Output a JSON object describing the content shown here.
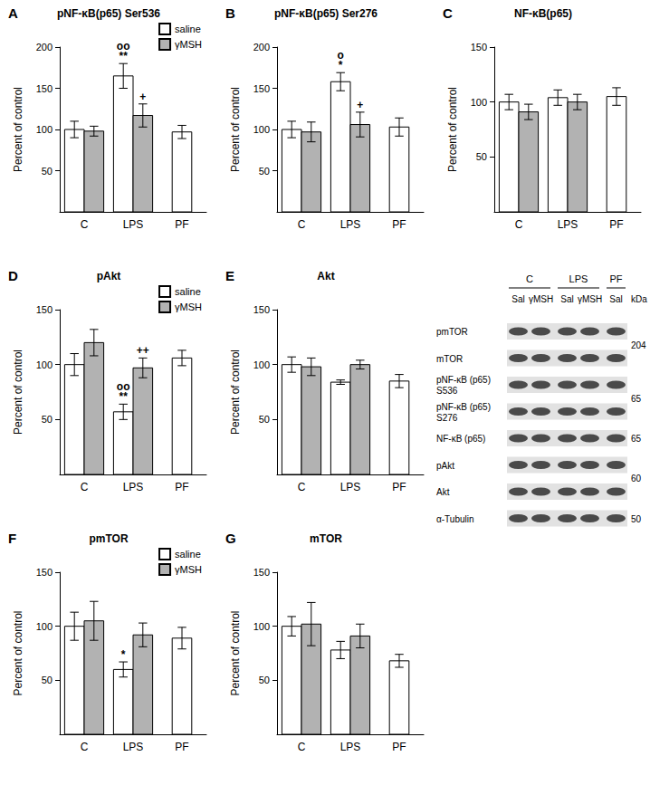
{
  "chart_data": [
    {
      "type": "bar",
      "panel": "A",
      "title": "pNF-κB(p65) Ser536",
      "y_label": "Percent of control",
      "categories": [
        "C",
        "LPS",
        "PF"
      ],
      "ylim": [
        0,
        200
      ],
      "yticks": [
        50,
        100,
        150,
        200
      ],
      "grid": false,
      "legend": "top-right",
      "series": [
        {
          "name": "saline",
          "color": "#ffffff",
          "values": [
            100,
            165,
            97
          ],
          "errors": [
            10,
            15,
            8
          ],
          "annotations": [
            null,
            [
              "oo",
              "**"
            ],
            null
          ]
        },
        {
          "name": "γMSH",
          "color": "#b2b2b2",
          "values": [
            98,
            117,
            null
          ],
          "errors": [
            6,
            14,
            null
          ],
          "annotations": [
            null,
            [
              "+"
            ],
            null
          ]
        }
      ]
    },
    {
      "type": "bar",
      "panel": "B",
      "title": "pNF-κB(p65) Ser276",
      "y_label": "Percent of control",
      "categories": [
        "C",
        "LPS",
        "PF"
      ],
      "ylim": [
        0,
        200
      ],
      "yticks": [
        50,
        100,
        150,
        200
      ],
      "grid": false,
      "series": [
        {
          "color": "#ffffff",
          "values": [
            100,
            158,
            103
          ],
          "errors": [
            10,
            11,
            11
          ],
          "annotations": [
            null,
            [
              "o",
              "*"
            ],
            null
          ]
        },
        {
          "color": "#b2b2b2",
          "values": [
            97,
            106,
            null
          ],
          "errors": [
            12,
            15,
            null
          ],
          "annotations": [
            null,
            [
              "+"
            ],
            null
          ]
        }
      ]
    },
    {
      "type": "bar",
      "panel": "C",
      "title": "NF-κB(p65)",
      "y_label": "Percent of control",
      "categories": [
        "C",
        "LPS",
        "PF"
      ],
      "ylim": [
        0,
        150
      ],
      "yticks": [
        50,
        100,
        150
      ],
      "grid": false,
      "series": [
        {
          "color": "#ffffff",
          "values": [
            100,
            104,
            105
          ],
          "errors": [
            7,
            7,
            8
          ]
        },
        {
          "color": "#b2b2b2",
          "values": [
            91,
            100,
            null
          ],
          "errors": [
            7,
            7,
            null
          ]
        }
      ]
    },
    {
      "type": "bar",
      "panel": "D",
      "title": "pAkt",
      "y_label": "Percent of control",
      "categories": [
        "C",
        "LPS",
        "PF"
      ],
      "ylim": [
        0,
        150
      ],
      "yticks": [
        50,
        100,
        150
      ],
      "grid": false,
      "legend": "top-right",
      "series": [
        {
          "name": "saline",
          "color": "#ffffff",
          "values": [
            100,
            57,
            106
          ],
          "errors": [
            10,
            7,
            7
          ],
          "annotations": [
            null,
            [
              "oo",
              "**"
            ],
            null
          ]
        },
        {
          "name": "γMSH",
          "color": "#b2b2b2",
          "values": [
            120,
            97,
            null
          ],
          "errors": [
            12,
            9,
            null
          ],
          "annotations": [
            null,
            [
              "++"
            ],
            null
          ]
        }
      ]
    },
    {
      "type": "bar",
      "panel": "E",
      "title": "Akt",
      "y_label": "Percent of control",
      "categories": [
        "C",
        "LPS",
        "PF"
      ],
      "ylim": [
        0,
        150
      ],
      "yticks": [
        50,
        100,
        150
      ],
      "grid": false,
      "series": [
        {
          "color": "#ffffff",
          "values": [
            100,
            84,
            85
          ],
          "errors": [
            7,
            2,
            6
          ]
        },
        {
          "color": "#b2b2b2",
          "values": [
            98,
            100,
            null
          ],
          "errors": [
            8,
            4,
            null
          ]
        }
      ]
    },
    {
      "type": "bar",
      "panel": "F",
      "title": "pmTOR",
      "y_label": "Percent of control",
      "categories": [
        "C",
        "LPS",
        "PF"
      ],
      "ylim": [
        0,
        150
      ],
      "yticks": [
        50,
        100,
        150
      ],
      "grid": false,
      "legend": "top-right",
      "series": [
        {
          "name": "saline",
          "color": "#ffffff",
          "values": [
            100,
            60,
            89
          ],
          "errors": [
            13,
            7,
            10
          ],
          "annotations": [
            null,
            [
              "*"
            ],
            null
          ]
        },
        {
          "name": "γMSH",
          "color": "#b2b2b2",
          "values": [
            105,
            92,
            null
          ],
          "errors": [
            18,
            11,
            null
          ]
        }
      ]
    },
    {
      "type": "bar",
      "panel": "G",
      "title": "mTOR",
      "y_label": "Percent of control",
      "categories": [
        "C",
        "LPS",
        "PF"
      ],
      "ylim": [
        0,
        150
      ],
      "yticks": [
        50,
        100,
        150
      ],
      "grid": false,
      "series": [
        {
          "color": "#ffffff",
          "values": [
            100,
            78,
            68
          ],
          "errors": [
            9,
            8,
            6
          ]
        },
        {
          "color": "#b2b2b2",
          "values": [
            102,
            91,
            null
          ],
          "errors": [
            20,
            11,
            null
          ]
        }
      ]
    }
  ],
  "blot": {
    "groups": [
      {
        "label": "C",
        "lanes": [
          "Sal",
          "γMSH"
        ]
      },
      {
        "label": "LPS",
        "lanes": [
          "Sal",
          "γMSH"
        ]
      },
      {
        "label": "PF",
        "lanes": [
          "Sal"
        ]
      }
    ],
    "rows": [
      "pmTOR",
      "mTOR",
      "pNF-κB (p65) S536",
      "pNF-κB (p65) S276",
      "NF-κB (p65)",
      "pAkt",
      "Akt",
      "α-Tubulin"
    ],
    "unit": "kDa",
    "markers": [
      {
        "kDa": 204,
        "rows": [
          "pmTOR",
          "mTOR"
        ]
      },
      {
        "kDa": 65,
        "rows": [
          "pNF-κB (p65) S536",
          "pNF-κB (p65) S276"
        ]
      },
      {
        "kDa": 65,
        "rows": [
          "NF-κB (p65)"
        ]
      },
      {
        "kDa": 60,
        "rows": [
          "pAkt",
          "Akt"
        ]
      },
      {
        "kDa": 50,
        "rows": [
          "α-Tubulin"
        ]
      }
    ]
  }
}
